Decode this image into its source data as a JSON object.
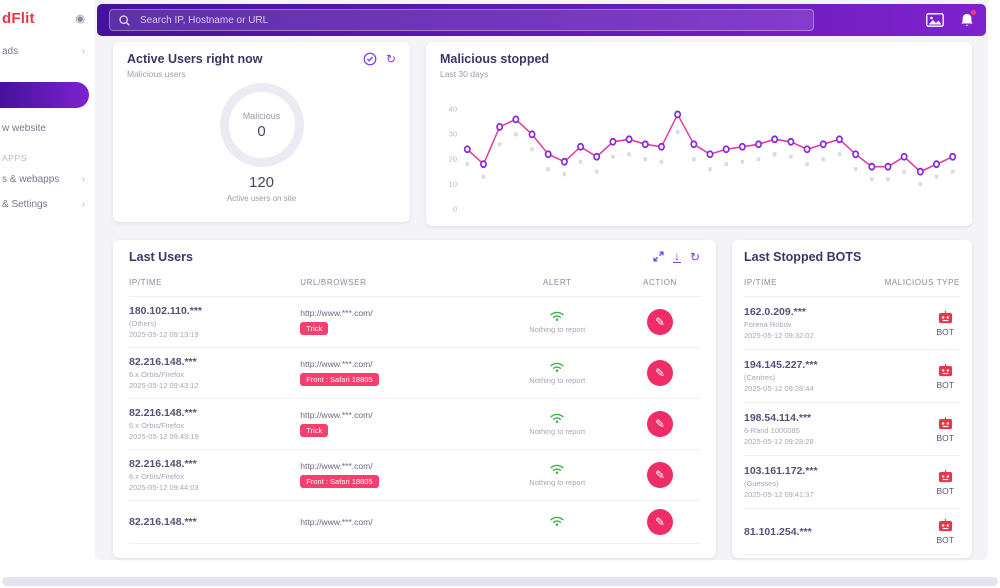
{
  "colors": {
    "primary": "#7c3aed",
    "pink": "#f5406e",
    "pinkDark": "#ee2d68",
    "green": "#3bb54a",
    "red": "#e8374a",
    "topbar1": "#45129b",
    "topbar2": "#7e22ce"
  },
  "sidebar": {
    "logo": "dFlit",
    "collapse_icon": "◉",
    "items": [
      {
        "label": "ads"
      },
      {
        "label": ""
      },
      {
        "label": "w website"
      },
      {
        "label": "APPS"
      },
      {
        "label": "s & webapps"
      },
      {
        "label": "& Settings"
      }
    ]
  },
  "topbar": {
    "search_placeholder": "Search IP, Hostname or URL"
  },
  "activeUsers": {
    "title": "Active Users right now",
    "subtitle": "Malicious users",
    "donut_label": "Malicious",
    "donut_value": "0",
    "total": "120",
    "total_caption": "Active users on site"
  },
  "chartCard": {
    "title": "Malicious stopped",
    "subtitle": "Last 30 days"
  },
  "chart_data": {
    "type": "line",
    "title": "Malicious stopped",
    "xlabel": "",
    "ylabel": "",
    "ylim": [
      0,
      45
    ],
    "yticks": [
      0,
      10,
      20,
      30,
      40
    ],
    "grid": false,
    "legend": "none",
    "x": [
      1,
      2,
      3,
      4,
      5,
      6,
      7,
      8,
      9,
      10,
      11,
      12,
      13,
      14,
      15,
      16,
      17,
      18,
      19,
      20,
      21,
      22,
      23,
      24,
      25,
      26,
      27,
      28,
      29,
      30,
      31
    ],
    "series": [
      {
        "name": "shadow",
        "style": "ghost",
        "color": "#b9b6c9",
        "values": [
          18,
          13,
          26,
          30,
          24,
          16,
          14,
          19,
          15,
          21,
          22,
          20,
          19,
          31,
          20,
          16,
          18,
          19,
          20,
          22,
          21,
          18,
          20,
          22,
          16,
          12,
          12,
          15,
          10,
          13,
          15
        ]
      },
      {
        "name": "Malicious stopped",
        "style": "line",
        "color": "#e23a9e",
        "marker": "#8327d8",
        "values": [
          24,
          18,
          33,
          36,
          30,
          22,
          19,
          25,
          21,
          27,
          28,
          26,
          25,
          38,
          26,
          22,
          24,
          25,
          26,
          28,
          27,
          24,
          26,
          28,
          22,
          17,
          17,
          21,
          15,
          18,
          21
        ]
      }
    ]
  },
  "lastUsers": {
    "title": "Last Users",
    "columns": [
      "IP/TIME",
      "URL/BROWSER",
      "ALERT",
      "ACTION"
    ],
    "rows": [
      {
        "ip": "180.102.110.***",
        "agent": "(Others)",
        "time": "2025-05-12 09:13:19",
        "url": "http://www.***.com/",
        "badge": "Trick",
        "alert": "Nothing to report"
      },
      {
        "ip": "82.216.148.***",
        "agent": "6.x Orbis/Firefox",
        "time": "2025-05-12 09:43:12",
        "url": "http://www.***.com/",
        "badge": "Front : Safari 18805",
        "alert": "Nothing to report"
      },
      {
        "ip": "82.216.148.***",
        "agent": "6.x Orbis/Firefox",
        "time": "2025-05-12 09:43:19",
        "url": "http://www.***.com/",
        "badge": "Trick",
        "alert": "Nothing to report"
      },
      {
        "ip": "82.216.148.***",
        "agent": "6.x Orbis/Firefox",
        "time": "2025-05-12 09:44:03",
        "url": "http://www.***.com/",
        "badge": "Front : Safari 18805",
        "alert": "Nothing to report"
      },
      {
        "ip": "82.216.148.***",
        "agent": "",
        "time": "",
        "url": "http://www.***.com/",
        "badge": "",
        "alert": ""
      }
    ]
  },
  "bots": {
    "title": "Last Stopped BOTS",
    "columns": [
      "IP/TIME",
      "MALICIOUS TYPE"
    ],
    "rows": [
      {
        "ip": "162.0.209.***",
        "name": "Forena Robov",
        "time": "2025-05-12 09:32:02",
        "type": "BOT"
      },
      {
        "ip": "194.145.227.***",
        "name": "(Centres)",
        "time": "2025-05-12 09:28:44",
        "type": "BOT"
      },
      {
        "ip": "198.54.114.***",
        "name": "6-Rand 1000085",
        "time": "2025-05-12 09:28:28",
        "type": "BOT"
      },
      {
        "ip": "103.161.172.***",
        "name": "(Guesses)",
        "time": "2025-05-12 09:41:37",
        "type": "BOT"
      },
      {
        "ip": "81.101.254.***",
        "name": "",
        "time": "",
        "type": "BOT"
      }
    ]
  }
}
